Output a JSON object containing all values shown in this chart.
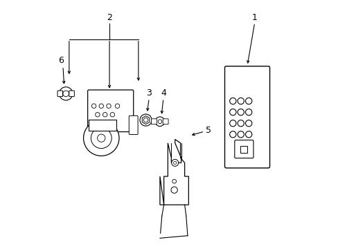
{
  "bg_color": "#ffffff",
  "line_color": "#000000",
  "figure_width": 4.89,
  "figure_height": 3.6,
  "dpi": 100
}
